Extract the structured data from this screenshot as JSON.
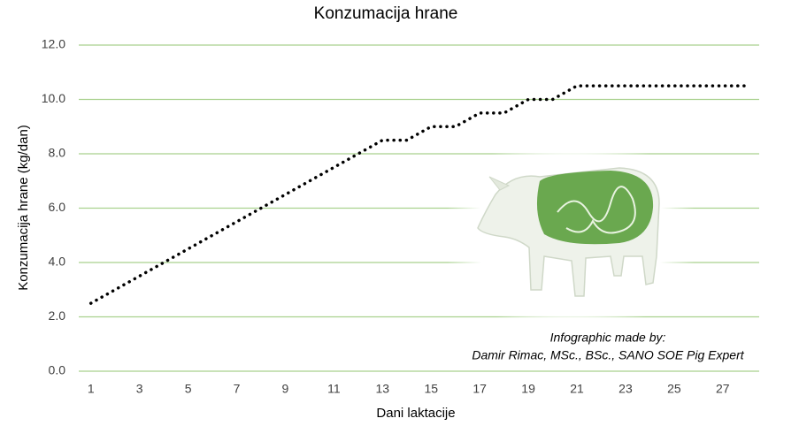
{
  "chart_data": {
    "type": "line",
    "title": "Konzumacija hrane",
    "x_label": "Dani laktacije",
    "y_label": "Konzumacija hrane (kg/dan)",
    "x": [
      1,
      2,
      3,
      4,
      5,
      6,
      7,
      8,
      9,
      10,
      11,
      12,
      13,
      14,
      15,
      16,
      17,
      18,
      19,
      20,
      21,
      22,
      23,
      24,
      25,
      26,
      27,
      28
    ],
    "series": [
      {
        "name": "Konzumacija hrane",
        "color": "#000000",
        "values": [
          2.5,
          3.0,
          3.5,
          4.0,
          4.5,
          5.0,
          5.5,
          6.0,
          6.5,
          7.0,
          7.5,
          8.0,
          8.5,
          8.5,
          9.0,
          9.0,
          9.5,
          9.5,
          10.0,
          10.0,
          10.5,
          10.5,
          10.5,
          10.5,
          10.5,
          10.5,
          10.5,
          10.5
        ]
      }
    ],
    "xlim": [
      0.5,
      28.5
    ],
    "xticks": [
      1,
      3,
      5,
      7,
      9,
      11,
      13,
      15,
      17,
      19,
      21,
      23,
      25,
      27
    ],
    "ylim": [
      0,
      12
    ],
    "yticks": [
      {
        "value": 0,
        "label": "0.0"
      },
      {
        "value": 2,
        "label": "2.0"
      },
      {
        "value": 4,
        "label": "4.0"
      },
      {
        "value": 6,
        "label": "6.0"
      },
      {
        "value": 8,
        "label": "8.0"
      },
      {
        "value": 10,
        "label": "10.0"
      },
      {
        "value": 12,
        "label": "12.0"
      }
    ],
    "grid": true,
    "grid_color": "#a9d18e",
    "annotations": [
      "Infographic made by:",
      "Damir Rimac, MSc., BSc., SANO SOE Pig Expert"
    ]
  }
}
